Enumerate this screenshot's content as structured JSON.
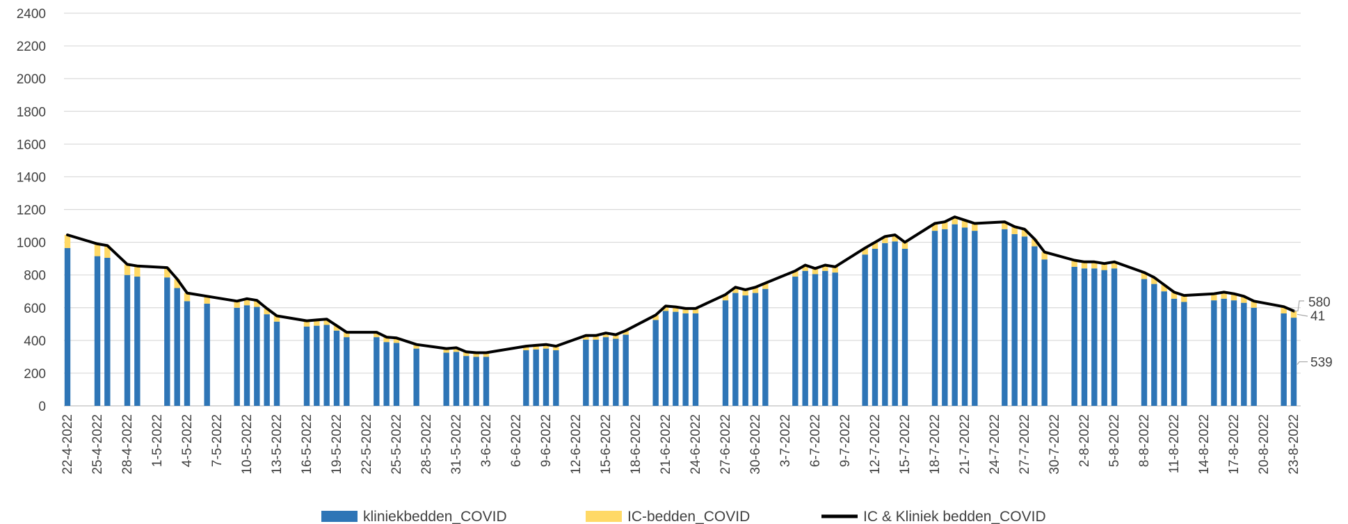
{
  "chart_data": {
    "type": "bar",
    "stacked": true,
    "title": "",
    "xlabel": "",
    "ylabel": "",
    "ylim": [
      0,
      2400
    ],
    "yticks": [
      0,
      200,
      400,
      600,
      800,
      1000,
      1200,
      1400,
      1600,
      1800,
      2000,
      2200,
      2400
    ],
    "grid": true,
    "legend": "bottom",
    "x_start": "22-4-2022",
    "x_end": "23-8-2022",
    "x_tick_labels": [
      "22-4-2022",
      "25-4-2022",
      "28-4-2022",
      "1-5-2022",
      "4-5-2022",
      "7-5-2022",
      "10-5-2022",
      "13-5-2022",
      "16-5-2022",
      "19-5-2022",
      "22-5-2022",
      "25-5-2022",
      "28-5-2022",
      "31-5-2022",
      "3-6-2022",
      "6-6-2022",
      "9-6-2022",
      "12-6-2022",
      "15-6-2022",
      "18-6-2022",
      "21-6-2022",
      "24-6-2022",
      "27-6-2022",
      "30-6-2022",
      "3-7-2022",
      "6-7-2022",
      "9-7-2022",
      "12-7-2022",
      "15-7-2022",
      "18-7-2022",
      "21-7-2022",
      "24-7-2022",
      "27-7-2022",
      "30-7-2022",
      "2-8-2022",
      "5-8-2022",
      "8-8-2022",
      "11-8-2022",
      "14-8-2022",
      "17-8-2022",
      "20-8-2022",
      "23-8-2022"
    ],
    "x": [
      "22-4-2022",
      "25-4-2022",
      "26-4-2022",
      "28-4-2022",
      "29-4-2022",
      "2-5-2022",
      "3-5-2022",
      "4-5-2022",
      "6-5-2022",
      "9-5-2022",
      "10-5-2022",
      "11-5-2022",
      "12-5-2022",
      "13-5-2022",
      "16-5-2022",
      "17-5-2022",
      "18-5-2022",
      "19-5-2022",
      "20-5-2022",
      "23-5-2022",
      "24-5-2022",
      "25-5-2022",
      "27-5-2022",
      "30-5-2022",
      "31-5-2022",
      "1-6-2022",
      "2-6-2022",
      "3-6-2022",
      "7-6-2022",
      "8-6-2022",
      "9-6-2022",
      "10-6-2022",
      "13-6-2022",
      "14-6-2022",
      "15-6-2022",
      "16-6-2022",
      "17-6-2022",
      "20-6-2022",
      "21-6-2022",
      "22-6-2022",
      "23-6-2022",
      "24-6-2022",
      "27-6-2022",
      "28-6-2022",
      "29-6-2022",
      "30-6-2022",
      "1-7-2022",
      "4-7-2022",
      "5-7-2022",
      "6-7-2022",
      "7-7-2022",
      "8-7-2022",
      "11-7-2022",
      "12-7-2022",
      "13-7-2022",
      "14-7-2022",
      "15-7-2022",
      "18-7-2022",
      "19-7-2022",
      "20-7-2022",
      "21-7-2022",
      "22-7-2022",
      "25-7-2022",
      "26-7-2022",
      "27-7-2022",
      "28-7-2022",
      "29-7-2022",
      "1-8-2022",
      "2-8-2022",
      "3-8-2022",
      "4-8-2022",
      "5-8-2022",
      "8-8-2022",
      "9-8-2022",
      "10-8-2022",
      "11-8-2022",
      "12-8-2022",
      "15-8-2022",
      "16-8-2022",
      "17-8-2022",
      "18-8-2022",
      "19-8-2022",
      "22-8-2022",
      "23-8-2022"
    ],
    "series": [
      {
        "name": "kliniekbedden_COVID",
        "kind": "bar",
        "color": "#2E75B6",
        "values": [
          965,
          915,
          905,
          800,
          790,
          785,
          720,
          640,
          625,
          600,
          615,
          605,
          560,
          515,
          485,
          490,
          495,
          460,
          420,
          420,
          390,
          385,
          350,
          325,
          330,
          305,
          300,
          300,
          340,
          345,
          350,
          340,
          405,
          405,
          420,
          410,
          435,
          525,
          580,
          575,
          565,
          565,
          645,
          690,
          675,
          690,
          715,
          790,
          825,
          805,
          825,
          815,
          925,
          960,
          995,
          1005,
          960,
          1070,
          1080,
          1110,
          1090,
          1070,
          1080,
          1050,
          1035,
          975,
          895,
          850,
          840,
          840,
          830,
          840,
          775,
          745,
          700,
          655,
          635,
          645,
          655,
          645,
          630,
          600,
          565,
          539
        ]
      },
      {
        "name": "IC-bedden_COVID",
        "kind": "bar",
        "color": "#FFD966",
        "values": [
          80,
          75,
          75,
          65,
          65,
          60,
          55,
          50,
          45,
          40,
          40,
          40,
          35,
          35,
          35,
          35,
          35,
          30,
          30,
          30,
          30,
          30,
          25,
          25,
          25,
          25,
          25,
          25,
          25,
          25,
          25,
          25,
          25,
          25,
          25,
          25,
          25,
          30,
          30,
          30,
          30,
          30,
          35,
          35,
          35,
          35,
          35,
          35,
          35,
          35,
          35,
          35,
          40,
          40,
          40,
          40,
          40,
          45,
          45,
          45,
          45,
          45,
          45,
          45,
          45,
          45,
          45,
          40,
          40,
          40,
          40,
          40,
          40,
          40,
          40,
          40,
          40,
          40,
          40,
          40,
          40,
          40,
          41,
          41
        ]
      },
      {
        "name": "IC & Kliniek bedden_COVID",
        "kind": "line",
        "color": "#000000",
        "values": [
          1045,
          990,
          980,
          865,
          855,
          845,
          775,
          690,
          670,
          640,
          655,
          645,
          595,
          550,
          520,
          525,
          530,
          490,
          450,
          450,
          420,
          415,
          375,
          350,
          355,
          330,
          325,
          325,
          365,
          370,
          375,
          365,
          430,
          430,
          445,
          435,
          460,
          555,
          610,
          605,
          595,
          595,
          680,
          725,
          710,
          725,
          750,
          825,
          860,
          840,
          860,
          850,
          965,
          1000,
          1035,
          1045,
          1000,
          1115,
          1125,
          1155,
          1135,
          1115,
          1125,
          1095,
          1080,
          1020,
          940,
          890,
          880,
          880,
          870,
          880,
          815,
          785,
          740,
          695,
          675,
          685,
          695,
          685,
          670,
          640,
          606,
          580
        ]
      }
    ],
    "annotations": [
      "580",
      "41",
      "539"
    ]
  },
  "legend": {
    "items": [
      {
        "label": "kliniekbedden_COVID",
        "color": "#2E75B6"
      },
      {
        "label": "IC-bedden_COVID",
        "color": "#FFD966"
      },
      {
        "label": "IC & Kliniek bedden_COVID",
        "color": "#000000"
      }
    ]
  }
}
